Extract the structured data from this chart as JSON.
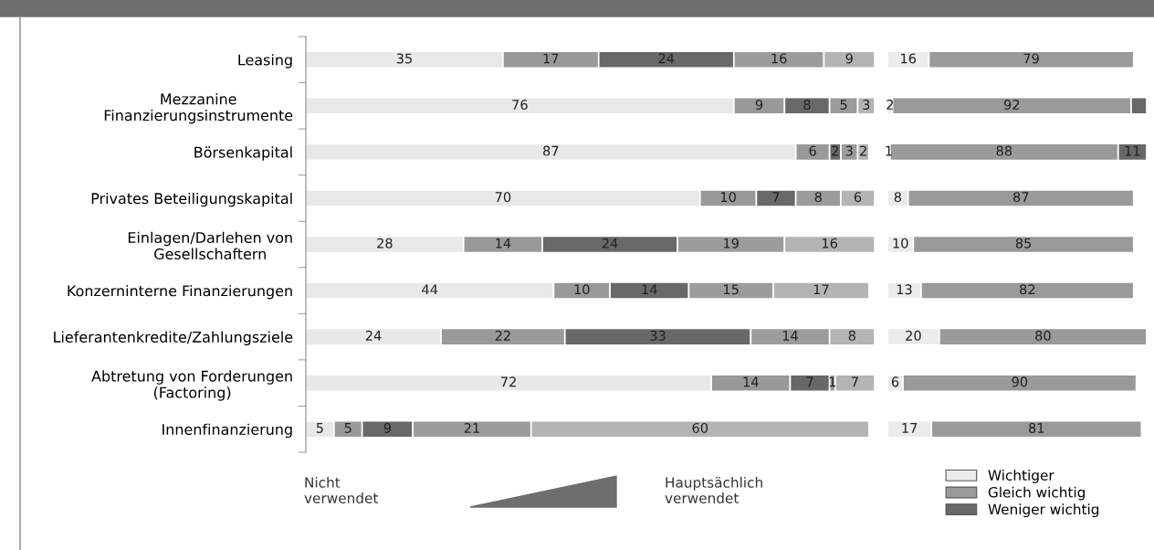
{
  "chart_data": [
    {
      "type": "bar",
      "orientation": "horizontal",
      "stacked": true,
      "data_labels": true,
      "tick_labels": "y",
      "grid": false,
      "legend": false,
      "categories": [
        "Leasing",
        "Mezzanine\nFinanzierungsinstrumente",
        "Börsenkapital",
        "Privates Beteiligungskapital",
        "Einlagen/Darlehen von\nGesellschaftern",
        "Konzerninterne Finanzierungen",
        "Lieferantenkredite/Zahlungsziele",
        "Abtretung von Forderungen\n(Factoring)",
        "Innenfinanzierung"
      ],
      "xlim": [
        0,
        101
      ],
      "series": [
        {
          "color": "#e8e8e8",
          "values": [
            35,
            76,
            87,
            70,
            28,
            44,
            24,
            72,
            5
          ]
        },
        {
          "color": "#999999",
          "values": [
            17,
            9,
            6,
            10,
            14,
            10,
            22,
            14,
            5
          ]
        },
        {
          "color": "#686868",
          "values": [
            24,
            8,
            2,
            7,
            24,
            14,
            33,
            7,
            9
          ]
        },
        {
          "color": "#9c9c9c",
          "values": [
            16,
            5,
            3,
            8,
            19,
            15,
            14,
            1,
            21
          ]
        },
        {
          "color": "#b4b4b4",
          "values": [
            9,
            3,
            2,
            6,
            16,
            17,
            8,
            7,
            60
          ]
        }
      ],
      "annotations": [
        "Nicht\nverwendet",
        "Hauptsächlich\nverwendet"
      ]
    },
    {
      "type": "bar",
      "orientation": "horizontal",
      "stacked": true,
      "tick_labels": false,
      "grid": false,
      "legend": "bottom",
      "categories": [
        null,
        null,
        null,
        null,
        null,
        null,
        null,
        null,
        null
      ],
      "xlim": [
        0,
        100
      ],
      "series": [
        {
          "name": "Wichtiger",
          "color": "#ebebeb",
          "values": [
            16,
            2,
            1,
            8,
            10,
            13,
            20,
            6,
            17
          ],
          "value_labels": [
            "16",
            "2",
            "1",
            "8",
            "10",
            "13",
            "20",
            "6",
            "17"
          ]
        },
        {
          "name": "Gleich wichtig",
          "color": "#9a9a9a",
          "values": [
            79,
            92,
            88,
            87,
            85,
            82,
            80,
            90,
            81
          ],
          "value_labels": [
            "79",
            "92",
            "88",
            "87",
            "85",
            "82",
            "80",
            "90",
            "81"
          ]
        },
        {
          "name": "Weniger wichtig",
          "color": "#686868",
          "values": [
            null,
            6,
            11,
            null,
            null,
            null,
            null,
            null,
            null
          ],
          "value_labels": [
            null,
            null,
            "11",
            null,
            null,
            null,
            null,
            null,
            null
          ]
        }
      ]
    }
  ]
}
